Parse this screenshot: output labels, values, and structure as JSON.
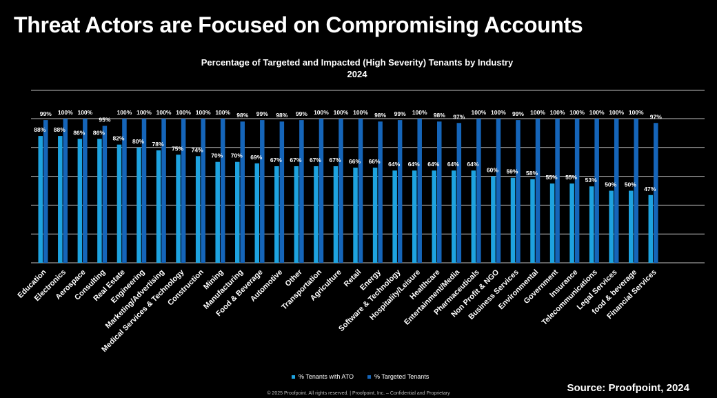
{
  "page_title": "Threat Actors are Focused on Compromising Accounts",
  "source": "Source: Proofpoint, 2024",
  "footer": "© 2025  Proofpoint. All rights reserved.  |  Proofpoint, Inc. – Confidential and Proprietary",
  "colors": {
    "ato": "#1ea3e0",
    "targeted": "#1565b9",
    "grid": "#bfbfbf",
    "background": "#000000"
  },
  "chart_data": {
    "type": "bar",
    "title": "Percentage of Targeted and Impacted (High Severity) Tenants by Industry",
    "subtitle": "2024",
    "xlabel": "",
    "ylabel": "",
    "ylim": [
      0,
      100
    ],
    "grid": true,
    "legend_position": "bottom",
    "categories": [
      "Education",
      "Electronics",
      "Aerospace",
      "Consulting",
      "Real Estate",
      "Engineering",
      "Marketing/Advertising",
      "Medical Services & Technology",
      "Construction",
      "Mining",
      "Manufacturing",
      "Food & Beverage",
      "Automotive",
      "Other",
      "Transportation",
      "Agriculture",
      "Retail",
      "Energy",
      "Software & Technology",
      "Hospitality/Leisure",
      "Healthcare",
      "Entertainment/Media",
      "Pharmaceuticals",
      "Non Profit & NGO",
      "Business Services",
      "Environmental",
      "Government",
      "Insurance",
      "Telecommunications",
      "Legal Services",
      "food & beverage",
      "Financial Services"
    ],
    "series": [
      {
        "name": "% Tenants with ATO",
        "values": [
          88,
          88,
          86,
          86,
          82,
          80,
          78,
          75,
          74,
          70,
          70,
          69,
          67,
          67,
          67,
          67,
          66,
          66,
          64,
          64,
          64,
          64,
          64,
          60,
          59,
          58,
          55,
          55,
          53,
          50,
          50,
          47
        ]
      },
      {
        "name": "% Targeted Tenants",
        "values": [
          99,
          100,
          100,
          95,
          100,
          100,
          100,
          100,
          100,
          100,
          98,
          99,
          98,
          99,
          100,
          100,
          100,
          98,
          99,
          100,
          98,
          97,
          100,
          100,
          99,
          100,
          100,
          100,
          100,
          100,
          100,
          97
        ]
      }
    ]
  }
}
